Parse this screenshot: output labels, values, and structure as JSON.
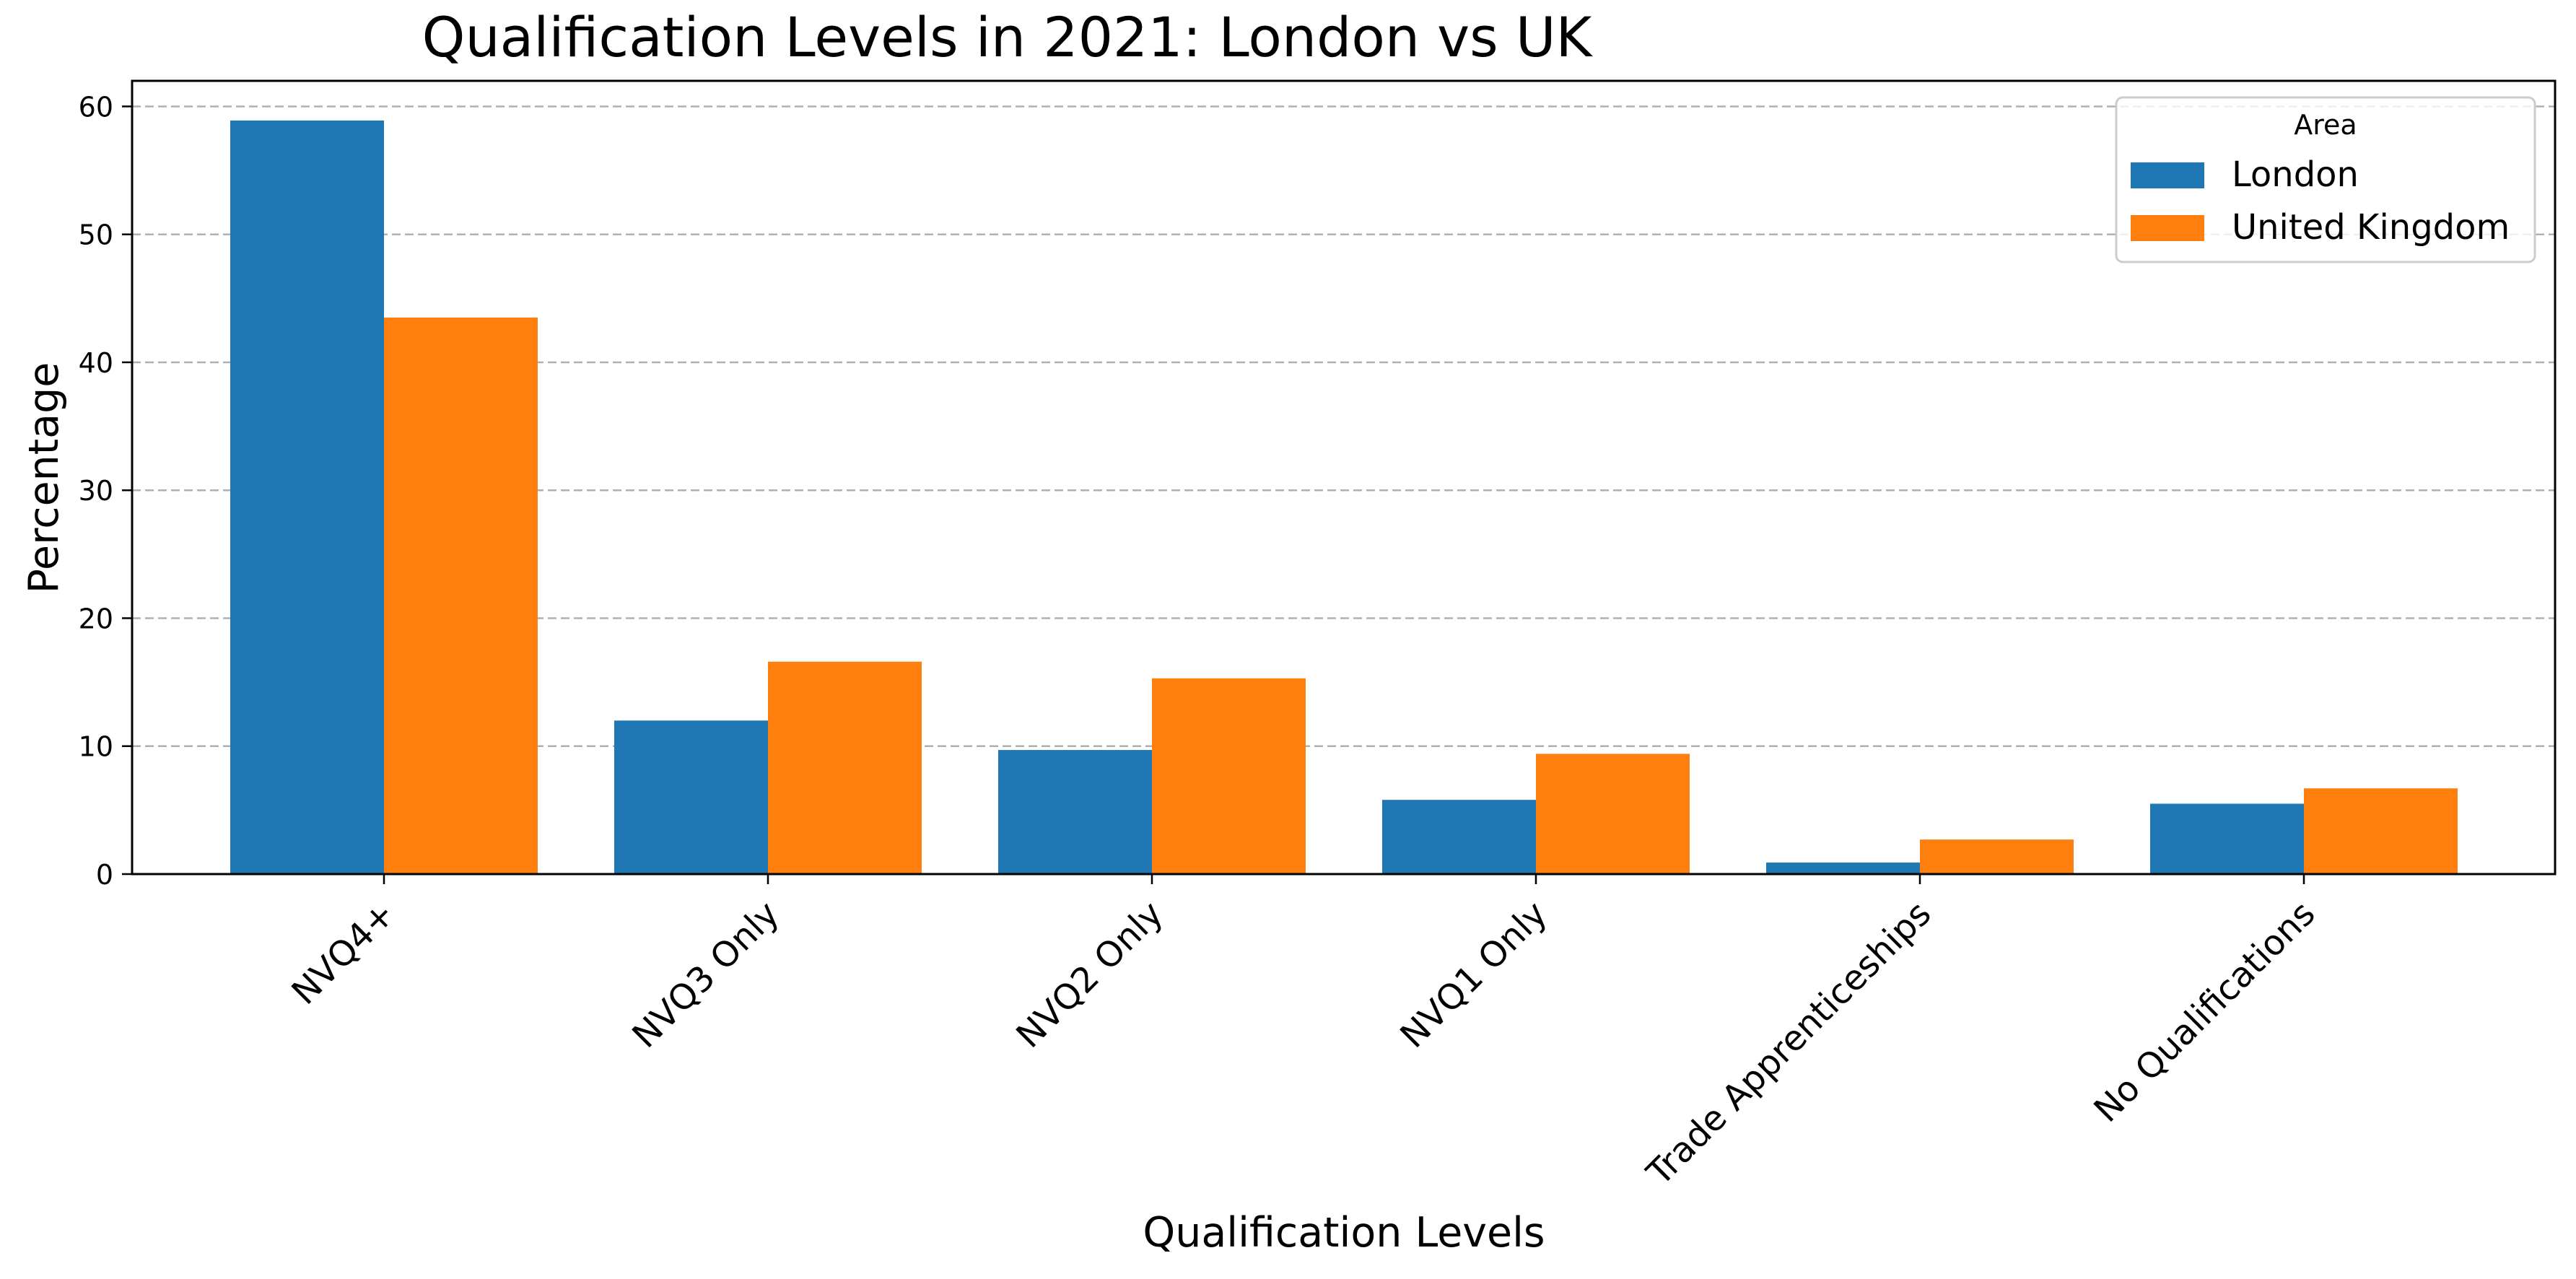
{
  "chart_data": {
    "type": "bar",
    "title": "Qualification Levels in 2021: London vs UK",
    "xlabel": "Qualification Levels",
    "ylabel": "Percentage",
    "categories": [
      "NVQ4+",
      "NVQ3 Only",
      "NVQ2 Only",
      "NVQ1 Only",
      "Trade Apprenticeships",
      "No Qualifications"
    ],
    "series": [
      {
        "name": "London",
        "color": "#1f77b4",
        "values": [
          58.9,
          12.0,
          9.7,
          5.8,
          0.9,
          5.5
        ]
      },
      {
        "name": "United Kingdom",
        "color": "#ff7f0e",
        "values": [
          43.5,
          16.6,
          15.3,
          9.4,
          2.7,
          6.7
        ]
      }
    ],
    "ylim": [
      0,
      62
    ],
    "yticks": [
      0,
      10,
      20,
      30,
      40,
      50,
      60
    ],
    "grid": {
      "y": true,
      "style": "dashed",
      "color": "#b0b0b0"
    },
    "legend": {
      "title": "Area",
      "position": "top-right"
    }
  }
}
